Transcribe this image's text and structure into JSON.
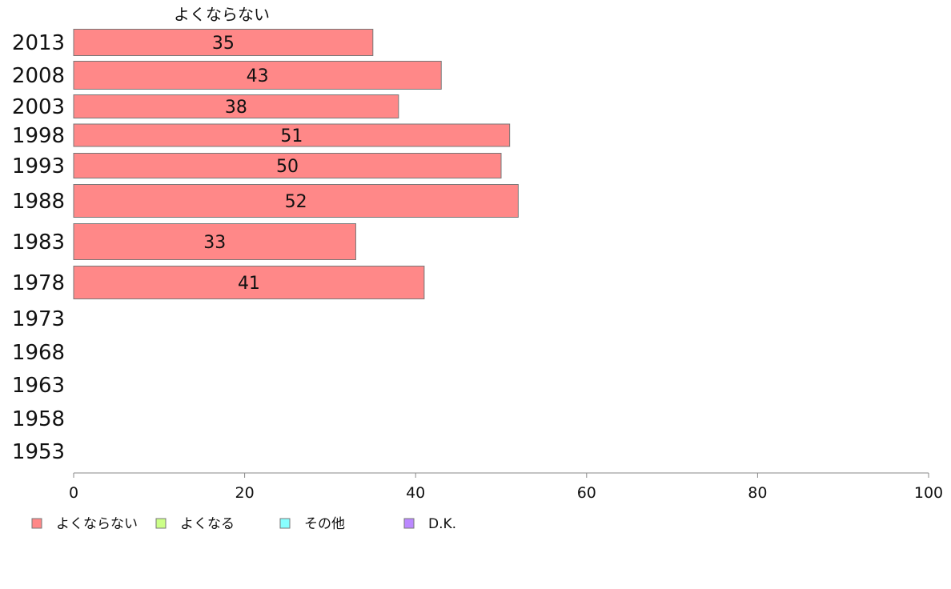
{
  "chart_data": {
    "type": "bar",
    "orientation": "horizontal",
    "series_header": "よくならない",
    "categories": [
      "2013",
      "2008",
      "2003",
      "1998",
      "1993",
      "1988",
      "1983",
      "1978",
      "1973",
      "1968",
      "1963",
      "1958",
      "1953"
    ],
    "series": [
      {
        "name": "よくならない",
        "color": "#ff8888",
        "values": [
          35,
          43,
          38,
          51,
          50,
          52,
          33,
          41,
          null,
          null,
          null,
          null,
          null
        ]
      }
    ],
    "xlim": [
      0,
      100
    ],
    "x_ticks": [
      0,
      20,
      40,
      60,
      80,
      100
    ],
    "grid": false,
    "legend": {
      "placement": "bottom-left",
      "items": [
        {
          "label": "よくならない",
          "color": "#ff8888"
        },
        {
          "label": "よくなる",
          "color": "#ccff88"
        },
        {
          "label": "その他",
          "color": "#88ffff"
        },
        {
          "label": "D.K.",
          "color": "#bb88ff"
        }
      ]
    }
  }
}
